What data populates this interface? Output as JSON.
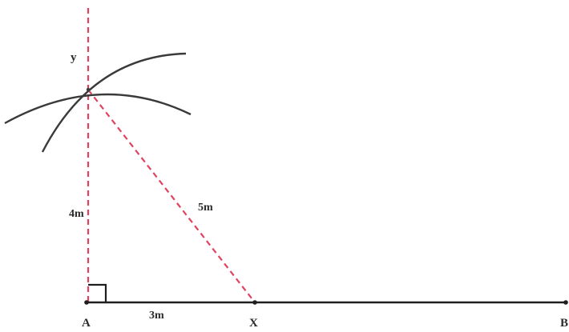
{
  "labels": {
    "point_a": "A",
    "point_x": "X",
    "point_b": "B",
    "point_y": "y",
    "length_ax": "3m",
    "length_ay": "4m",
    "length_xy": "5m"
  },
  "colors": {
    "line": "#1f1f1f",
    "arc": "#3a3a3a",
    "dashed": "#e0435f",
    "text": "#2b2b2b"
  }
}
